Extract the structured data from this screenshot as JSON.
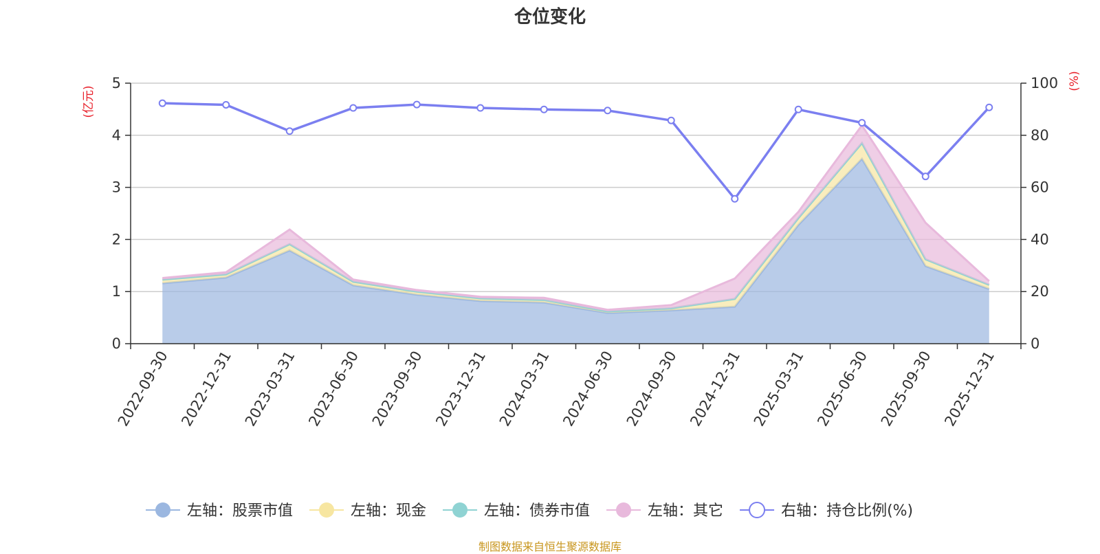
{
  "title": "仓位变化",
  "source_note": "制图数据来自恒生聚源数据库",
  "colors": {
    "stock": "#9bb7e0",
    "cash": "#f7e6a1",
    "bond": "#8fd3d3",
    "other": "#e8b9dc",
    "ratio": "#7b7ff0",
    "axis_unit": "#e8202a"
  },
  "chart_data": {
    "type": "area",
    "title": "仓位变化",
    "categories": [
      "2022-09-30",
      "2022-12-31",
      "2023-03-31",
      "2023-06-30",
      "2023-09-30",
      "2023-12-31",
      "2024-03-31",
      "2024-06-30",
      "2024-09-30",
      "2024-12-31",
      "2025-03-31",
      "2025-06-30",
      "2025-09-30",
      "2025-12-31"
    ],
    "left_axis": {
      "unit": "(亿元)",
      "ylim": [
        0,
        5
      ],
      "ticks": [
        0,
        1,
        2,
        3,
        4,
        5
      ]
    },
    "right_axis": {
      "unit": "(%)",
      "ylim": [
        0,
        100
      ],
      "ticks": [
        0,
        20,
        40,
        60,
        80,
        100
      ]
    },
    "grid": true,
    "stacked": true,
    "legend_position": "bottom",
    "series": [
      {
        "name": "左轴：股票市值",
        "axis": "left",
        "type": "area",
        "color_key": "stock",
        "values": [
          1.16,
          1.27,
          1.79,
          1.12,
          0.94,
          0.82,
          0.79,
          0.59,
          0.64,
          0.71,
          2.28,
          3.55,
          1.49,
          1.05
        ]
      },
      {
        "name": "左轴：现金",
        "axis": "left",
        "type": "area",
        "color_key": "cash",
        "values": [
          0.07,
          0.06,
          0.12,
          0.07,
          0.06,
          0.05,
          0.05,
          0.03,
          0.04,
          0.15,
          0.13,
          0.3,
          0.13,
          0.08
        ]
      },
      {
        "name": "左轴：债券市值",
        "axis": "left",
        "type": "area",
        "color_key": "bond",
        "values": [
          0,
          0,
          0,
          0,
          0,
          0,
          0,
          0,
          0,
          0,
          0,
          0,
          0,
          0
        ]
      },
      {
        "name": "左轴：其它",
        "axis": "left",
        "type": "area",
        "color_key": "other",
        "values": [
          0.03,
          0.04,
          0.28,
          0.04,
          0.03,
          0.03,
          0.04,
          0.03,
          0.06,
          0.39,
          0.12,
          0.34,
          0.7,
          0.07
        ]
      },
      {
        "name": "右轴：持仓比例(%)",
        "axis": "right",
        "type": "line",
        "color_key": "ratio",
        "values": [
          92.3,
          91.7,
          81.6,
          90.5,
          91.8,
          90.5,
          89.9,
          89.5,
          85.7,
          55.6,
          89.9,
          84.8,
          64.2,
          90.7
        ]
      }
    ]
  }
}
